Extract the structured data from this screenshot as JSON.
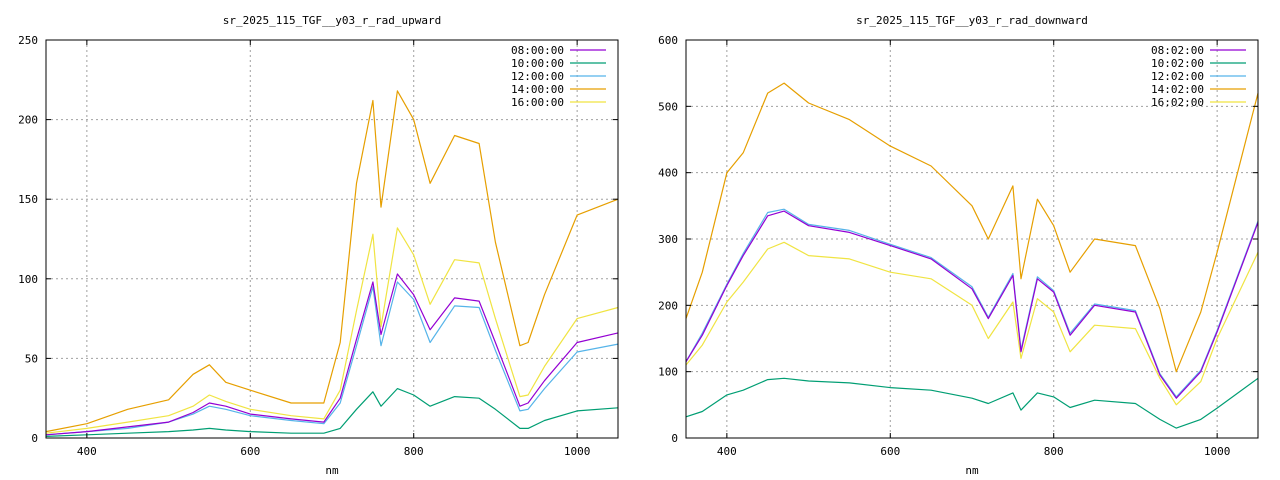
{
  "chart_data": [
    {
      "type": "line",
      "title": "sr_2025_115_TGF__y03_r_rad_upward",
      "xlabel": "nm",
      "ylabel": "",
      "xlim": [
        350,
        1050
      ],
      "ylim": [
        0,
        250
      ],
      "xticks": [
        400,
        600,
        800,
        1000
      ],
      "yticks": [
        0,
        50,
        100,
        150,
        200,
        250
      ],
      "grid": true,
      "legend": "top-right",
      "x": [
        350,
        400,
        450,
        500,
        530,
        550,
        570,
        600,
        650,
        690,
        710,
        730,
        750,
        760,
        780,
        800,
        820,
        850,
        880,
        900,
        930,
        940,
        960,
        1000,
        1050
      ],
      "series": [
        {
          "name": "08:00:00",
          "color": "#9400d3",
          "values": [
            2,
            4,
            7,
            10,
            16,
            22,
            20,
            15,
            12,
            10,
            25,
            62,
            98,
            65,
            103,
            90,
            68,
            88,
            86,
            60,
            20,
            22,
            36,
            60,
            66
          ]
        },
        {
          "name": "10:00:00",
          "color": "#009e73",
          "values": [
            1,
            2,
            3,
            4,
            5,
            6,
            5,
            4,
            3,
            3,
            6,
            18,
            29,
            20,
            31,
            27,
            20,
            26,
            25,
            18,
            6,
            6,
            11,
            17,
            19
          ]
        },
        {
          "name": "12:00:00",
          "color": "#56b4e9",
          "values": [
            2,
            4,
            6,
            10,
            15,
            20,
            18,
            14,
            11,
            9,
            22,
            58,
            95,
            58,
            98,
            87,
            60,
            83,
            82,
            55,
            17,
            18,
            31,
            54,
            59
          ]
        },
        {
          "name": "14:00:00",
          "color": "#e69f00",
          "values": [
            4,
            9,
            18,
            24,
            40,
            46,
            35,
            30,
            22,
            22,
            60,
            160,
            212,
            145,
            218,
            200,
            160,
            190,
            185,
            123,
            58,
            60,
            90,
            140,
            150
          ]
        },
        {
          "name": "16:00:00",
          "color": "#f0e442",
          "values": [
            3,
            6,
            10,
            14,
            20,
            27,
            23,
            18,
            14,
            12,
            30,
            80,
            128,
            70,
            132,
            115,
            84,
            112,
            110,
            75,
            26,
            27,
            45,
            75,
            82
          ]
        }
      ]
    },
    {
      "type": "line",
      "title": "sr_2025_115_TGF__y03_r_rad_downward",
      "xlabel": "nm",
      "ylabel": "",
      "xlim": [
        350,
        1050
      ],
      "ylim": [
        0,
        600
      ],
      "xticks": [
        400,
        600,
        800,
        1000
      ],
      "yticks": [
        0,
        100,
        200,
        300,
        400,
        500,
        600
      ],
      "grid": true,
      "legend": "top-right",
      "x": [
        350,
        370,
        400,
        420,
        450,
        470,
        500,
        550,
        600,
        650,
        700,
        720,
        750,
        760,
        780,
        800,
        820,
        850,
        900,
        930,
        950,
        980,
        1000,
        1050
      ],
      "series": [
        {
          "name": "08:02:00",
          "color": "#9400d3",
          "values": [
            115,
            155,
            230,
            275,
            335,
            342,
            320,
            310,
            290,
            270,
            225,
            180,
            245,
            130,
            240,
            220,
            155,
            200,
            190,
            95,
            60,
            100,
            160,
            325
          ]
        },
        {
          "name": "10:02:00",
          "color": "#009e73",
          "values": [
            32,
            40,
            65,
            72,
            88,
            90,
            86,
            83,
            76,
            72,
            60,
            52,
            68,
            42,
            68,
            62,
            46,
            57,
            52,
            28,
            15,
            28,
            45,
            90
          ]
        },
        {
          "name": "12:02:00",
          "color": "#56b4e9",
          "values": [
            115,
            158,
            232,
            278,
            340,
            345,
            322,
            313,
            292,
            272,
            228,
            182,
            248,
            133,
            243,
            222,
            158,
            202,
            192,
            97,
            62,
            102,
            162,
            327
          ]
        },
        {
          "name": "14:02:00",
          "color": "#e69f00",
          "values": [
            180,
            250,
            400,
            430,
            520,
            535,
            505,
            480,
            440,
            410,
            350,
            300,
            380,
            240,
            360,
            320,
            250,
            300,
            290,
            195,
            100,
            190,
            280,
            520
          ]
        },
        {
          "name": "16:02:00",
          "color": "#f0e442",
          "values": [
            110,
            140,
            205,
            235,
            285,
            295,
            275,
            270,
            250,
            240,
            200,
            150,
            205,
            120,
            210,
            190,
            130,
            170,
            165,
            90,
            50,
            85,
            150,
            280
          ]
        }
      ]
    }
  ]
}
